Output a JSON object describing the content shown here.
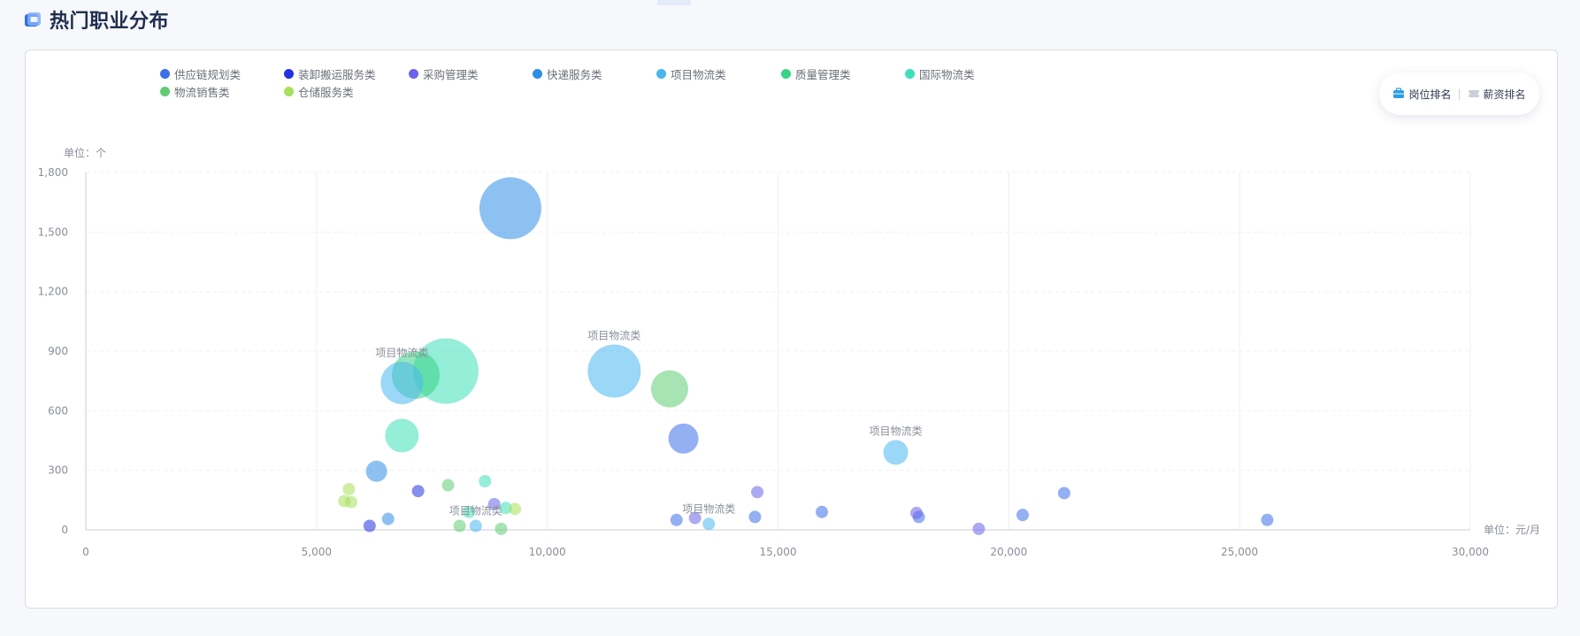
{
  "header": {
    "title": "热门职业分布"
  },
  "rank_toggle": {
    "job_rank": "岗位排名",
    "salary_rank": "薪资排名"
  },
  "chart_data": {
    "type": "scatter",
    "title": "热门职业分布",
    "xunit": "单位：元/月",
    "yunit": "单位：个",
    "xlim": [
      0,
      30000
    ],
    "ylim": [
      0,
      1800
    ],
    "xticks": [
      0,
      5000,
      10000,
      15000,
      20000,
      25000,
      30000
    ],
    "xtick_labels": [
      "0",
      "5,000",
      "10,000",
      "15,000",
      "20,000",
      "25,000",
      "30,000"
    ],
    "yticks": [
      0,
      300,
      600,
      900,
      1200,
      1500,
      1800
    ],
    "ytick_labels": [
      "0",
      "300",
      "600",
      "900",
      "1,200",
      "1,500",
      "1,800"
    ],
    "grid": true,
    "legend_position": "top-left",
    "series": [
      {
        "name": "供应链规划类",
        "color": "#3d6fe8",
        "points": [
          {
            "x": 12950,
            "y": 460,
            "r": 17
          },
          {
            "x": 15950,
            "y": 90,
            "r": 7
          },
          {
            "x": 18050,
            "y": 65,
            "r": 7
          },
          {
            "x": 20300,
            "y": 75,
            "r": 7
          },
          {
            "x": 21200,
            "y": 185,
            "r": 7
          },
          {
            "x": 25600,
            "y": 50,
            "r": 7
          },
          {
            "x": 14500,
            "y": 65,
            "r": 7
          },
          {
            "x": 12800,
            "y": 50,
            "r": 7
          }
        ]
      },
      {
        "name": "装卸搬运服务类",
        "color": "#2433e0",
        "points": [
          {
            "x": 7200,
            "y": 195,
            "r": 7
          },
          {
            "x": 6150,
            "y": 20,
            "r": 7
          }
        ]
      },
      {
        "name": "采购管理类",
        "color": "#6b63ea",
        "points": [
          {
            "x": 14550,
            "y": 190,
            "r": 7
          },
          {
            "x": 18000,
            "y": 85,
            "r": 7
          },
          {
            "x": 19350,
            "y": 5,
            "r": 7
          },
          {
            "x": 13200,
            "y": 60,
            "r": 7
          },
          {
            "x": 8850,
            "y": 130,
            "r": 7
          }
        ]
      },
      {
        "name": "快递服务类",
        "color": "#2f8ee6",
        "points": [
          {
            "x": 9200,
            "y": 1620,
            "r": 35
          },
          {
            "x": 6300,
            "y": 295,
            "r": 12
          },
          {
            "x": 6550,
            "y": 55,
            "r": 7
          }
        ]
      },
      {
        "name": "项目物流类",
        "color": "#49b6ee",
        "points": [
          {
            "x": 11450,
            "y": 800,
            "r": 30,
            "label": "项目物流类"
          },
          {
            "x": 6850,
            "y": 740,
            "r": 24,
            "label": "项目物流类"
          },
          {
            "x": 17550,
            "y": 390,
            "r": 14,
            "label": "项目物流类"
          },
          {
            "x": 13500,
            "y": 30,
            "r": 7,
            "label": "项目物流类"
          },
          {
            "x": 8450,
            "y": 20,
            "r": 7,
            "label": "项目物流类"
          }
        ]
      },
      {
        "name": "质量管理类",
        "color": "#37d486",
        "points": [
          {
            "x": 7150,
            "y": 780,
            "r": 27
          }
        ]
      },
      {
        "name": "国际物流类",
        "color": "#3ee0b8",
        "points": [
          {
            "x": 7800,
            "y": 800,
            "r": 37
          },
          {
            "x": 6850,
            "y": 475,
            "r": 19
          },
          {
            "x": 8650,
            "y": 245,
            "r": 7
          },
          {
            "x": 8300,
            "y": 90,
            "r": 7
          },
          {
            "x": 9100,
            "y": 110,
            "r": 7
          }
        ]
      },
      {
        "name": "物流销售类",
        "color": "#5fcc74",
        "points": [
          {
            "x": 12650,
            "y": 710,
            "r": 21
          },
          {
            "x": 7850,
            "y": 225,
            "r": 7
          },
          {
            "x": 8100,
            "y": 20,
            "r": 7
          },
          {
            "x": 9000,
            "y": 5,
            "r": 7
          }
        ]
      },
      {
        "name": "仓储服务类",
        "color": "#a7e05a",
        "points": [
          {
            "x": 5700,
            "y": 205,
            "r": 7
          },
          {
            "x": 5600,
            "y": 145,
            "r": 7
          },
          {
            "x": 5750,
            "y": 140,
            "r": 7
          },
          {
            "x": 9300,
            "y": 105,
            "r": 7
          }
        ]
      }
    ]
  }
}
